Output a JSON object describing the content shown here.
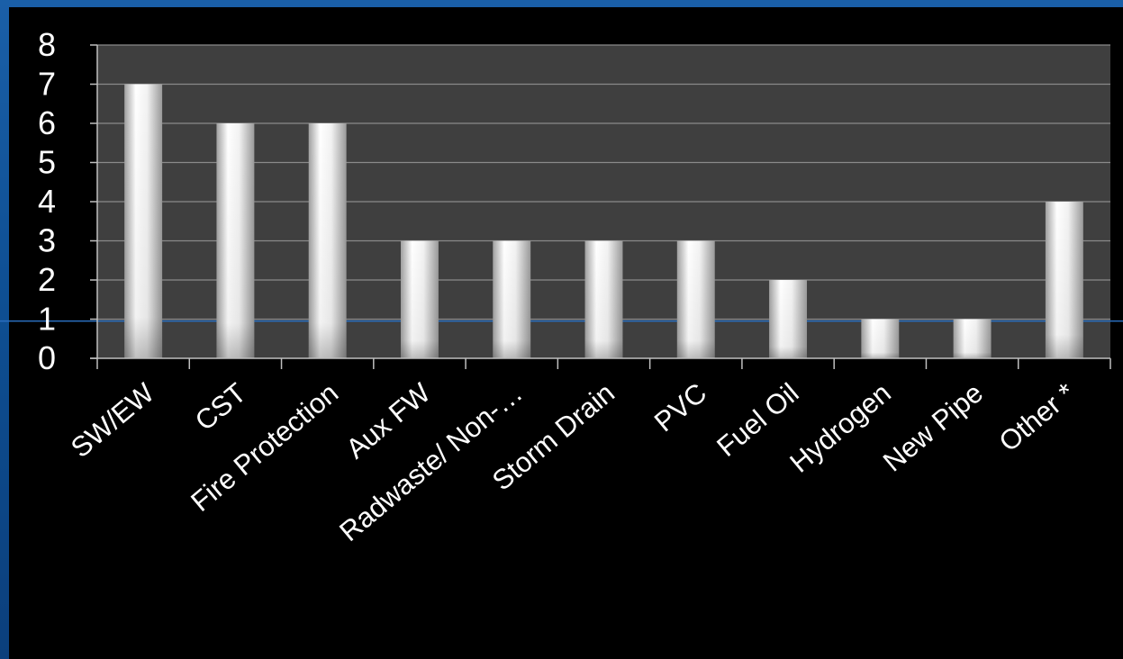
{
  "chart_data": {
    "type": "bar",
    "categories": [
      "SW/EW",
      "CST",
      "Fire Protection",
      "Aux FW",
      "Radwaste/ Non-…",
      "Storm Drain",
      "PVC",
      "Fuel Oil",
      "Hydrogen",
      "New Pipe",
      "Other *"
    ],
    "values": [
      7,
      6,
      6,
      3,
      3,
      3,
      3,
      2,
      1,
      1,
      4
    ],
    "yticks": [
      "0",
      "1",
      "2",
      "3",
      "4",
      "5",
      "6",
      "7",
      "8"
    ],
    "ylim": [
      0,
      8
    ],
    "grid": true,
    "legend": "none",
    "colors": {
      "plot_background": "#3f3f3f",
      "gridline": "#8a8a8a",
      "bar_light": "#ffffff",
      "bar_dark": "#9a9a9a",
      "text": "#ffffff",
      "accent_line": "#2a6fc0"
    }
  }
}
